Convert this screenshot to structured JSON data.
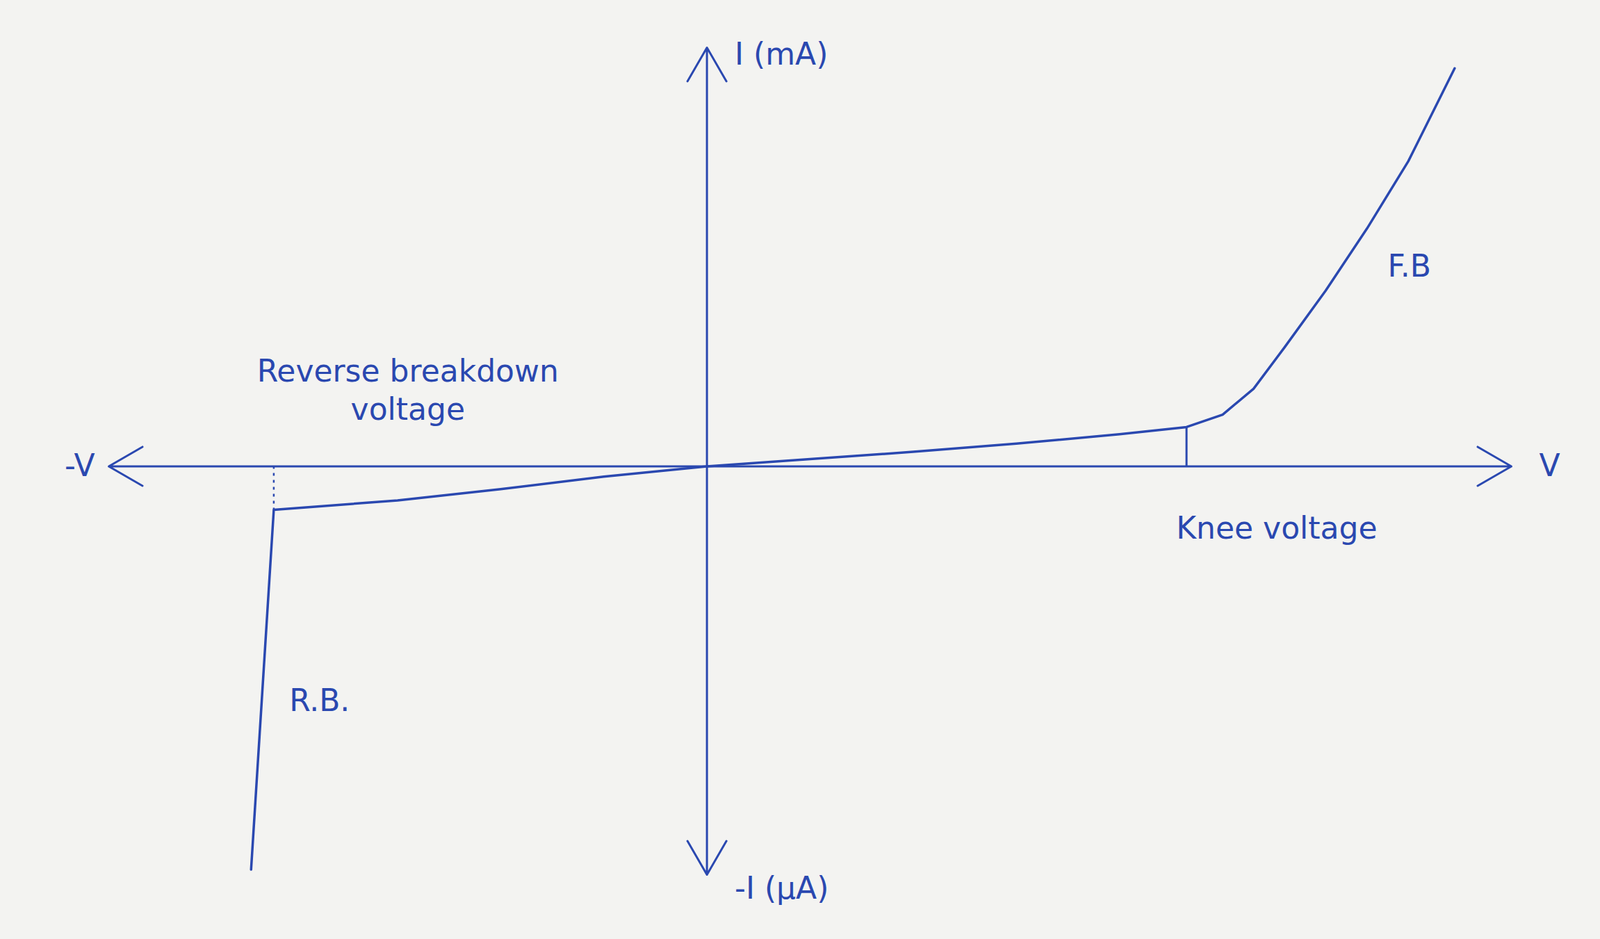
{
  "chart_data": {
    "type": "line",
    "color": "#2a48b0",
    "x": [
      -4.42,
      -4.2,
      -3,
      -2,
      -1,
      0,
      1,
      2,
      3,
      4,
      4.65,
      5.0,
      5.3,
      5.6,
      6.0,
      6.4,
      6.8,
      7.25
    ],
    "values": [
      -3.9,
      -0.42,
      -0.33,
      -0.22,
      -0.1,
      0,
      0.07,
      0.14,
      0.22,
      0.31,
      0.38,
      0.5,
      0.75,
      1.15,
      1.7,
      2.3,
      2.95,
      3.85
    ],
    "xlim": [
      -5.8,
      7.8
    ],
    "ylim": [
      -3.95,
      4.05
    ],
    "tick_labels": false,
    "grid": false,
    "axis_labels": {
      "x_pos": "V",
      "x_neg": "-V",
      "y_pos": "I (mA)",
      "y_neg": "-I (μA)"
    },
    "breakdown_voltage": -4.2,
    "knee_voltage": 4.65,
    "annotations": [
      {
        "text": "Reverse breakdown voltage",
        "x": -2.9,
        "y": 0.75
      },
      {
        "text": "Knee voltage",
        "x": 4.55,
        "y": -0.58
      },
      {
        "text": "F.B",
        "x": 6.6,
        "y": 1.95
      },
      {
        "text": "R.B.",
        "x": -4.05,
        "y": -2.25
      }
    ]
  }
}
